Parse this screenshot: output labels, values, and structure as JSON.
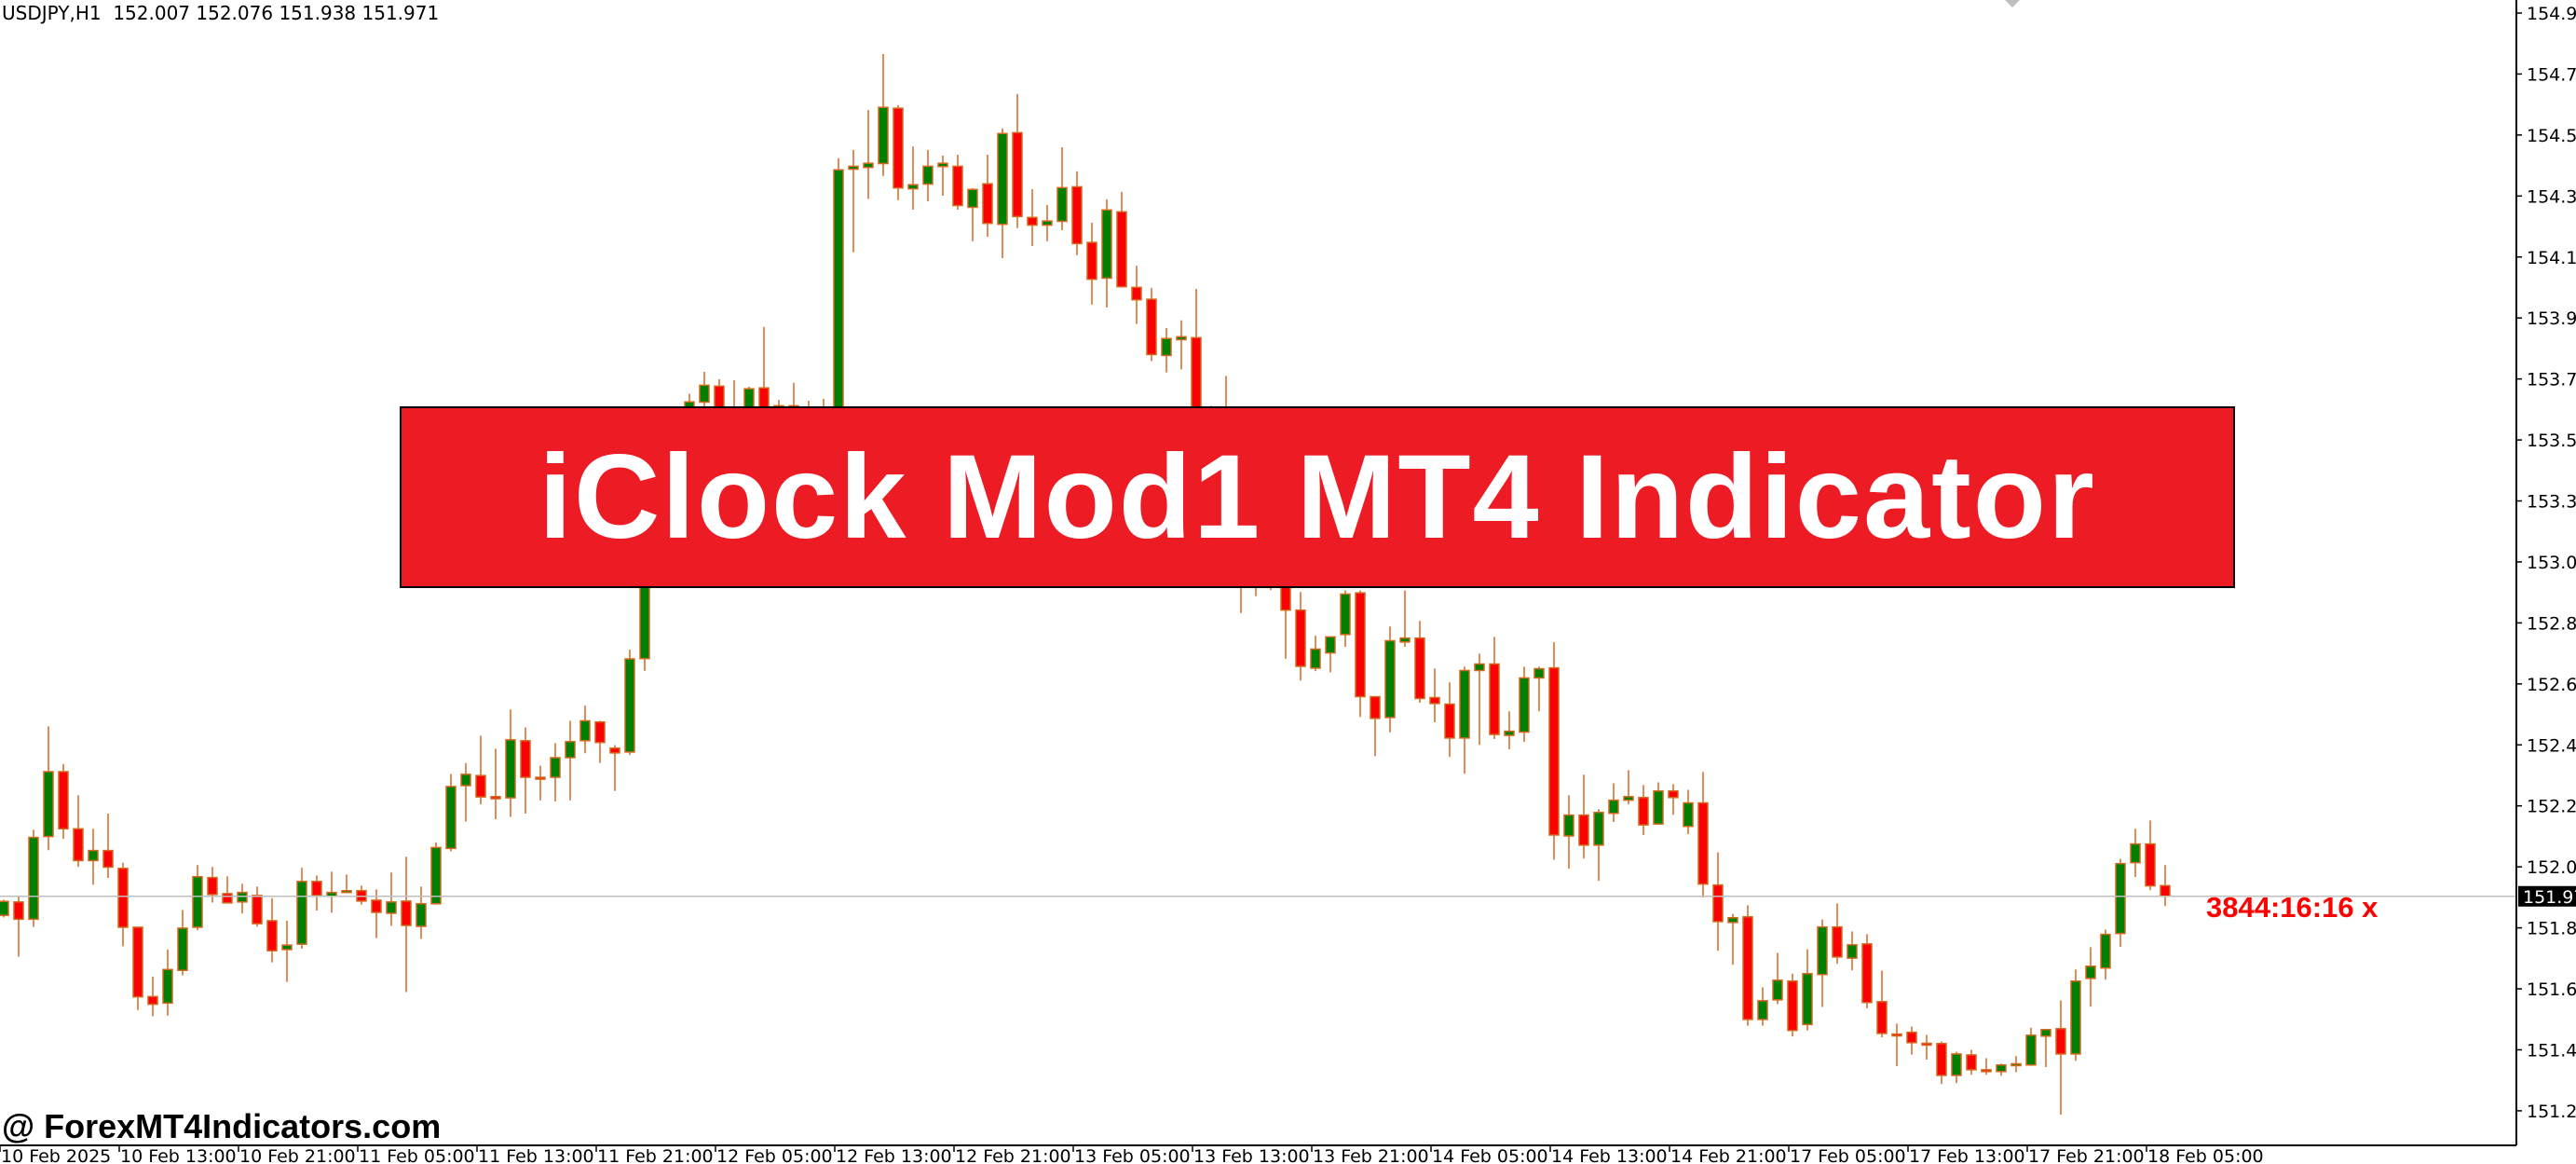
{
  "header": {
    "symbol_timeframe": "USDJPY,H1",
    "ohlc": "152.007 152.076 151.938 151.971"
  },
  "banner": {
    "title": "iClock Mod1 MT4 Indicator"
  },
  "indicator": {
    "countdown": "3844:16:16 x"
  },
  "watermark": {
    "text": "@ ForexMT4Indicators.com"
  },
  "colors": {
    "bull": "#008000",
    "bear": "#ff0000",
    "wick": "#d2691e",
    "price_line": "#c0c0c0",
    "banner": "#ed1c24"
  },
  "chart_data": {
    "type": "candlestick",
    "symbol": "USDJPY",
    "timeframe": "H1",
    "current_price": "151.971",
    "ylim": [
      151.15,
      155.0
    ],
    "y_ticks": [
      "154.940",
      "154.735",
      "154.530",
      "154.325",
      "154.120",
      "153.915",
      "153.710",
      "153.505",
      "153.300",
      "153.095",
      "152.890",
      "152.685",
      "152.480",
      "152.275",
      "152.070",
      "151.865",
      "151.660",
      "151.455",
      "151.250"
    ],
    "x_ticks": [
      "10 Feb 2025",
      "10 Feb 13:00",
      "10 Feb 21:00",
      "11 Feb 05:00",
      "11 Feb 13:00",
      "11 Feb 21:00",
      "12 Feb 05:00",
      "12 Feb 13:00",
      "12 Feb 21:00",
      "13 Feb 05:00",
      "13 Feb 13:00",
      "13 Feb 21:00",
      "14 Feb 05:00",
      "14 Feb 13:00",
      "14 Feb 21:00",
      "17 Feb 05:00",
      "17 Feb 13:00",
      "17 Feb 21:00",
      "18 Feb 05:00"
    ],
    "x_tick_every_bars": 8,
    "ohlc_order": [
      "open",
      "high",
      "low",
      "close"
    ],
    "candles": [
      [
        151.907,
        151.96,
        151.9,
        151.954
      ],
      [
        151.952,
        151.971,
        151.768,
        151.894
      ],
      [
        151.894,
        152.195,
        151.868,
        152.169
      ],
      [
        152.172,
        152.542,
        152.126,
        152.39
      ],
      [
        152.39,
        152.416,
        152.164,
        152.198
      ],
      [
        152.198,
        152.311,
        152.07,
        152.091
      ],
      [
        152.091,
        152.198,
        152.01,
        152.125
      ],
      [
        152.125,
        152.249,
        152.033,
        152.069
      ],
      [
        152.065,
        152.084,
        151.803,
        151.867
      ],
      [
        151.867,
        151.867,
        151.589,
        151.633
      ],
      [
        151.634,
        151.701,
        151.568,
        151.608
      ],
      [
        151.612,
        151.792,
        151.57,
        151.725
      ],
      [
        151.722,
        151.925,
        151.705,
        151.864
      ],
      [
        151.867,
        152.076,
        151.857,
        152.037
      ],
      [
        152.034,
        152.07,
        151.95,
        151.977
      ],
      [
        151.98,
        152.038,
        151.949,
        151.949
      ],
      [
        151.952,
        152.013,
        151.913,
        151.984
      ],
      [
        151.974,
        152.004,
        151.869,
        151.879
      ],
      [
        151.889,
        151.965,
        151.749,
        151.788
      ],
      [
        151.792,
        151.889,
        151.683,
        151.807
      ],
      [
        151.81,
        152.067,
        151.795,
        152.021
      ],
      [
        152.021,
        152.041,
        151.923,
        151.974
      ],
      [
        151.971,
        152.054,
        151.916,
        151.984
      ],
      [
        151.984,
        152.044,
        151.984,
        151.99
      ],
      [
        151.99,
        152.007,
        151.943,
        151.955
      ],
      [
        151.958,
        151.994,
        151.831,
        151.917
      ],
      [
        151.914,
        152.051,
        151.872,
        151.952
      ],
      [
        151.955,
        152.104,
        151.649,
        151.873
      ],
      [
        151.87,
        152.004,
        151.828,
        151.946
      ],
      [
        151.946,
        152.152,
        151.943,
        152.135
      ],
      [
        152.132,
        152.382,
        152.122,
        152.34
      ],
      [
        152.343,
        152.419,
        152.222,
        152.381
      ],
      [
        152.377,
        152.511,
        152.28,
        152.305
      ],
      [
        152.306,
        152.467,
        152.23,
        152.299
      ],
      [
        152.302,
        152.599,
        152.238,
        152.497
      ],
      [
        152.494,
        152.539,
        152.249,
        152.371
      ],
      [
        152.371,
        152.41,
        152.293,
        152.368
      ],
      [
        152.371,
        152.486,
        152.29,
        152.437
      ],
      [
        152.437,
        152.561,
        152.293,
        152.491
      ],
      [
        152.494,
        152.612,
        152.452,
        152.561
      ],
      [
        152.557,
        152.561,
        152.419,
        152.488
      ],
      [
        152.469,
        152.479,
        152.325,
        152.453
      ],
      [
        152.456,
        152.8,
        152.446,
        152.769
      ],
      [
        152.77,
        153.15,
        152.729,
        153.1
      ],
      [
        153.1,
        153.4,
        153.05,
        153.35
      ],
      [
        153.35,
        153.45,
        153.25,
        153.3
      ],
      [
        153.3,
        153.66,
        153.28,
        153.633
      ],
      [
        153.632,
        153.734,
        153.6,
        153.689
      ],
      [
        153.686,
        153.709,
        153.55,
        153.6
      ],
      [
        153.6,
        153.706,
        153.45,
        153.55
      ],
      [
        153.55,
        153.684,
        153.5,
        153.677
      ],
      [
        153.68,
        153.885,
        153.55,
        153.6
      ],
      [
        153.6,
        153.64,
        153.55,
        153.62
      ],
      [
        153.62,
        153.697,
        153.52,
        153.58
      ],
      [
        153.58,
        153.637,
        153.5,
        153.6
      ],
      [
        153.6,
        153.643,
        153.48,
        153.56
      ],
      [
        153.56,
        154.452,
        153.53,
        154.413
      ],
      [
        154.415,
        154.48,
        154.136,
        154.425
      ],
      [
        154.421,
        154.614,
        154.315,
        154.435
      ],
      [
        154.434,
        154.802,
        154.392,
        154.623
      ],
      [
        154.62,
        154.63,
        154.311,
        154.352
      ],
      [
        154.349,
        154.492,
        154.279,
        154.363
      ],
      [
        154.365,
        154.48,
        154.307,
        154.425
      ],
      [
        154.424,
        154.461,
        154.326,
        154.435
      ],
      [
        154.425,
        154.464,
        154.279,
        154.293
      ],
      [
        154.287,
        154.351,
        154.173,
        154.347
      ],
      [
        154.366,
        154.464,
        154.188,
        154.233
      ],
      [
        154.23,
        154.552,
        154.116,
        154.535
      ],
      [
        154.538,
        154.668,
        154.217,
        154.256
      ],
      [
        154.253,
        154.348,
        154.157,
        154.227
      ],
      [
        154.227,
        154.295,
        154.173,
        154.241
      ],
      [
        154.24,
        154.489,
        154.21,
        154.353
      ],
      [
        154.356,
        154.408,
        154.126,
        154.165
      ],
      [
        154.169,
        154.235,
        153.96,
        154.045
      ],
      [
        154.049,
        154.314,
        153.95,
        154.278
      ],
      [
        154.272,
        154.339,
        154.017,
        154.02
      ],
      [
        154.018,
        154.091,
        153.895,
        153.976
      ],
      [
        153.978,
        154.016,
        153.77,
        153.792
      ],
      [
        153.789,
        153.881,
        153.732,
        153.846
      ],
      [
        153.842,
        153.907,
        153.742,
        153.852
      ],
      [
        153.849,
        154.013,
        153.5,
        153.55
      ],
      [
        153.55,
        153.62,
        153.3,
        153.35
      ],
      [
        153.35,
        153.72,
        153.3,
        153.45
      ],
      [
        153.45,
        153.5,
        152.923,
        153.15
      ],
      [
        153.15,
        153.2,
        152.98,
        153.05
      ],
      [
        153.05,
        153.15,
        153.0,
        153.1
      ],
      [
        153.1,
        153.15,
        152.769,
        152.933
      ],
      [
        152.933,
        152.994,
        152.696,
        152.744
      ],
      [
        152.738,
        152.847,
        152.728,
        152.802
      ],
      [
        152.789,
        152.843,
        152.724,
        152.843
      ],
      [
        152.851,
        152.999,
        152.81,
        152.987
      ],
      [
        152.991,
        152.999,
        152.574,
        152.642
      ],
      [
        152.642,
        152.642,
        152.442,
        152.569
      ],
      [
        152.572,
        152.878,
        152.522,
        152.83
      ],
      [
        152.826,
        152.999,
        152.81,
        152.839
      ],
      [
        152.839,
        152.897,
        152.622,
        152.636
      ],
      [
        152.639,
        152.737,
        152.556,
        152.619
      ],
      [
        152.617,
        152.69,
        152.439,
        152.503
      ],
      [
        152.503,
        152.743,
        152.383,
        152.73
      ],
      [
        152.73,
        152.787,
        152.48,
        152.752
      ],
      [
        152.752,
        152.843,
        152.5,
        152.515
      ],
      [
        152.512,
        152.593,
        152.465,
        152.526
      ],
      [
        152.523,
        152.743,
        152.49,
        152.705
      ],
      [
        152.705,
        152.743,
        152.593,
        152.736
      ],
      [
        152.739,
        152.825,
        152.094,
        152.177
      ],
      [
        152.174,
        152.311,
        152.064,
        152.244
      ],
      [
        152.244,
        152.38,
        152.098,
        152.143
      ],
      [
        152.143,
        152.264,
        152.023,
        152.253
      ],
      [
        152.25,
        152.351,
        152.221,
        152.294
      ],
      [
        152.294,
        152.395,
        152.28,
        152.306
      ],
      [
        152.303,
        152.345,
        152.177,
        152.211
      ],
      [
        152.214,
        152.354,
        152.214,
        152.325
      ],
      [
        152.325,
        152.348,
        152.245,
        152.303
      ],
      [
        152.206,
        152.329,
        152.18,
        152.285
      ],
      [
        152.285,
        152.389,
        151.967,
        152.012
      ],
      [
        152.009,
        152.119,
        151.788,
        151.886
      ],
      [
        151.883,
        151.912,
        151.741,
        151.899
      ],
      [
        151.902,
        151.941,
        151.536,
        151.557
      ],
      [
        151.557,
        151.665,
        151.536,
        151.62
      ],
      [
        151.623,
        151.781,
        151.609,
        151.689
      ],
      [
        151.686,
        151.711,
        151.5,
        151.52
      ],
      [
        151.54,
        151.793,
        151.52,
        151.711
      ],
      [
        151.708,
        151.893,
        151.599,
        151.868
      ],
      [
        151.868,
        151.947,
        151.744,
        151.767
      ],
      [
        151.763,
        151.853,
        151.722,
        151.808
      ],
      [
        151.811,
        151.844,
        151.594,
        151.614
      ],
      [
        151.617,
        151.721,
        151.497,
        151.51
      ],
      [
        151.508,
        151.543,
        151.4,
        151.506
      ],
      [
        151.514,
        151.533,
        151.439,
        151.479
      ],
      [
        151.477,
        151.505,
        151.422,
        151.476
      ],
      [
        151.476,
        151.483,
        151.34,
        151.369
      ],
      [
        151.369,
        151.448,
        151.343,
        151.441
      ],
      [
        151.438,
        151.455,
        151.371,
        151.388
      ],
      [
        151.388,
        151.427,
        151.371,
        151.382
      ],
      [
        151.382,
        151.409,
        151.368,
        151.404
      ],
      [
        151.407,
        151.434,
        151.38,
        151.408
      ],
      [
        151.404,
        151.529,
        151.401,
        151.504
      ],
      [
        151.501,
        151.523,
        151.397,
        151.523
      ],
      [
        151.526,
        151.621,
        151.237,
        151.441
      ],
      [
        151.441,
        151.725,
        151.418,
        151.686
      ],
      [
        151.695,
        151.8,
        151.6,
        151.736
      ],
      [
        151.73,
        151.859,
        151.691,
        151.843
      ],
      [
        151.846,
        152.097,
        151.801,
        152.081
      ],
      [
        152.084,
        152.198,
        152.036,
        152.147
      ],
      [
        152.147,
        152.226,
        151.992,
        152.006
      ],
      [
        152.007,
        152.076,
        151.938,
        151.971
      ]
    ]
  }
}
